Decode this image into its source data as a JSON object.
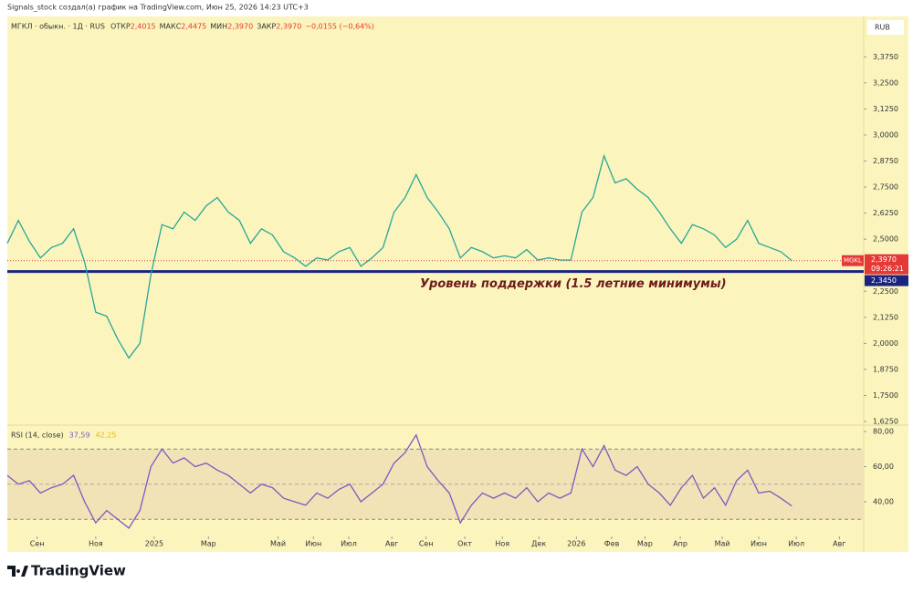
{
  "header": {
    "text": "Signals_stock создал(а) график на TradingView.com, Июн 25, 2026 14:23 UTC+3"
  },
  "footer": {
    "brand": "TradingView"
  },
  "chart_data": [
    {
      "type": "line",
      "legend": "МГКЛ · обыкн. · 1Д · RUS",
      "stats": [
        {
          "label": "ОТКР",
          "value": "2,4015"
        },
        {
          "label": "МАКС",
          "value": "2,4475"
        },
        {
          "label": "МИН",
          "value": "2,3970"
        },
        {
          "label": "ЗАКР",
          "value": "2,3970"
        }
      ],
      "change": "−0,0155 (−0,64%)",
      "currency": "RUB",
      "series": [
        {
          "name": "MGKL",
          "color": "#26a69a",
          "values": [
            2.48,
            2.59,
            2.49,
            2.41,
            2.46,
            2.48,
            2.55,
            2.39,
            2.15,
            2.13,
            2.02,
            1.93,
            2.0,
            2.33,
            2.57,
            2.55,
            2.63,
            2.59,
            2.66,
            2.7,
            2.63,
            2.59,
            2.48,
            2.55,
            2.52,
            2.44,
            2.41,
            2.37,
            2.41,
            2.4,
            2.44,
            2.46,
            2.37,
            2.41,
            2.46,
            2.63,
            2.7,
            2.81,
            2.7,
            2.63,
            2.55,
            2.41,
            2.46,
            2.44,
            2.41,
            2.42,
            2.41,
            2.45,
            2.4,
            2.41,
            2.4,
            2.4,
            2.63,
            2.7,
            2.9,
            2.77,
            2.79,
            2.74,
            2.7,
            2.63,
            2.55,
            2.48,
            2.57,
            2.55,
            2.52,
            2.46,
            2.5,
            2.59,
            2.48,
            2.46,
            2.44,
            2.397
          ],
          "last_label": "2,3970",
          "countdown": "09:26:21"
        }
      ],
      "support": {
        "value": 2.345,
        "label": "2,3450",
        "annotation": "Уровень поддержки (1.5 летние минимумы)",
        "color": "#1a237e"
      },
      "xlim": [
        0,
        77.5
      ],
      "ylim": [
        1.612,
        3.569
      ],
      "yticks": [
        {
          "value": 1.625,
          "label": "1,6250"
        },
        {
          "value": 1.75,
          "label": "1,7500"
        },
        {
          "value": 1.875,
          "label": "1,8750"
        },
        {
          "value": 2.0,
          "label": "2,0000"
        },
        {
          "value": 2.125,
          "label": "2,1250"
        },
        {
          "value": 2.25,
          "label": "2,2500"
        },
        {
          "value": 2.5,
          "label": "2,5000"
        },
        {
          "value": 2.625,
          "label": "2,6250"
        },
        {
          "value": 2.75,
          "label": "2,7500"
        },
        {
          "value": 2.875,
          "label": "2,8750"
        },
        {
          "value": 3.0,
          "label": "3,0000"
        },
        {
          "value": 3.125,
          "label": "3,1250"
        },
        {
          "value": 3.25,
          "label": "3,2500"
        },
        {
          "value": 3.375,
          "label": "3,3750"
        }
      ]
    },
    {
      "type": "line",
      "title": "RSI (14, close)",
      "series": [
        {
          "name": "RSI",
          "color": "#7e57c2",
          "values": [
            55,
            50,
            52,
            45,
            48,
            50,
            55,
            40,
            28,
            35,
            30,
            25,
            35,
            60,
            70,
            62,
            65,
            60,
            62,
            58,
            55,
            50,
            45,
            50,
            48,
            42,
            40,
            38,
            45,
            42,
            47,
            50,
            40,
            45,
            50,
            62,
            68,
            78,
            60,
            52,
            45,
            28,
            38,
            45,
            42,
            45,
            42,
            48,
            40,
            45,
            42,
            45,
            70,
            60,
            72,
            58,
            55,
            60,
            50,
            45,
            38,
            48,
            55,
            42,
            48,
            38,
            52,
            58,
            45,
            46,
            42,
            37.59
          ],
          "last_label": "37,59"
        }
      ],
      "ma_label": "42,25",
      "band": [
        30,
        70
      ],
      "midline": 50,
      "xlim": [
        0,
        77.5
      ],
      "ylim": [
        21.3,
        83.1
      ],
      "yticks": [
        {
          "value": 40,
          "label": "40,00"
        },
        {
          "value": 60,
          "label": "60,00"
        },
        {
          "value": 80,
          "label": "80,00"
        }
      ],
      "xticks": [
        {
          "value": 2.7,
          "label": "Сен"
        },
        {
          "value": 8.0,
          "label": "Ноя"
        },
        {
          "value": 13.3,
          "label": "2025"
        },
        {
          "value": 18.2,
          "label": "Мар"
        },
        {
          "value": 24.5,
          "label": "Май"
        },
        {
          "value": 27.7,
          "label": "Июн"
        },
        {
          "value": 30.9,
          "label": "Июл"
        },
        {
          "value": 34.8,
          "label": "Авг"
        },
        {
          "value": 37.9,
          "label": "Сен"
        },
        {
          "value": 41.4,
          "label": "Окт"
        },
        {
          "value": 44.8,
          "label": "Ноя"
        },
        {
          "value": 48.1,
          "label": "Дек"
        },
        {
          "value": 51.5,
          "label": "2026"
        },
        {
          "value": 54.7,
          "label": "Фев"
        },
        {
          "value": 57.7,
          "label": "Мар"
        },
        {
          "value": 60.9,
          "label": "Апр"
        },
        {
          "value": 64.7,
          "label": "Май"
        },
        {
          "value": 68.0,
          "label": "Июн"
        },
        {
          "value": 71.4,
          "label": "Июл"
        },
        {
          "value": 75.3,
          "label": "Авг"
        }
      ]
    }
  ]
}
